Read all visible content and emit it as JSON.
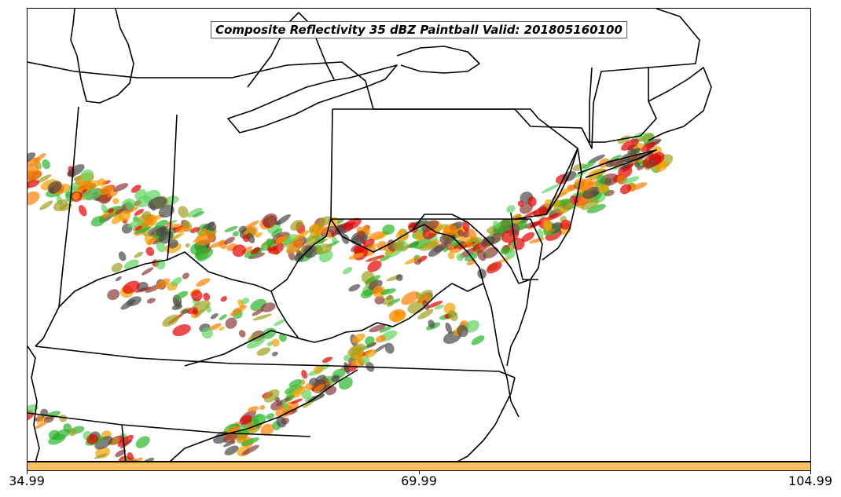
{
  "title": "Composite Reflectivity 35 dBZ Paintball Valid: 201805160100",
  "colorbar": {
    "color": "#ffc060",
    "ticks": [
      "34.99",
      "69.99",
      "104.99"
    ]
  },
  "paint_colors": [
    "#e60000",
    "#ff7f00",
    "#2ab52a",
    "#8b3a3a",
    "#4a4a4a",
    "#a0a020",
    "#f4a000",
    "#5fd35f"
  ]
}
